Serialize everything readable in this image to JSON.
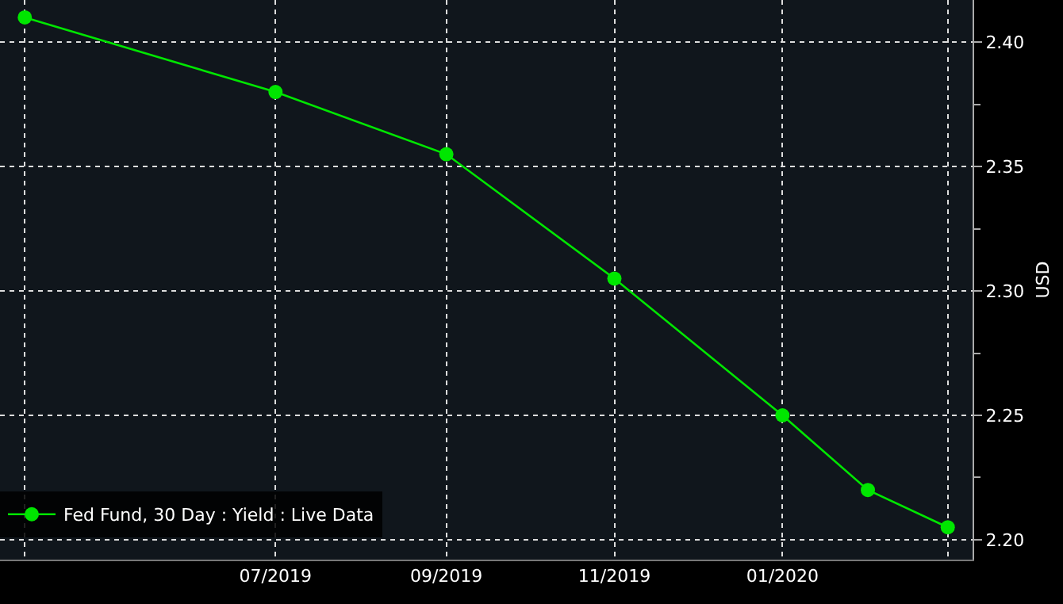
{
  "chart_data": {
    "type": "line",
    "ylabel": "USD",
    "x": [
      "2019-04",
      "2019-07",
      "2019-09",
      "2019-11",
      "2020-01",
      "2020-02",
      "2020-03"
    ],
    "series": [
      {
        "name": "Fed Fund, 30 Day : Yield : Live Data",
        "color": "#00e600",
        "values": [
          2.41,
          2.38,
          2.355,
          2.305,
          2.25,
          2.22,
          2.205
        ]
      }
    ],
    "xlim": [
      "2019-03-23",
      "2020-03-10"
    ],
    "xticks": [
      {
        "value": "2019-04",
        "label": null
      },
      {
        "value": "2019-07",
        "label": "07/2019"
      },
      {
        "value": "2019-09",
        "label": "09/2019"
      },
      {
        "value": "2019-11",
        "label": "11/2019"
      },
      {
        "value": "2020-01",
        "label": "01/2020"
      },
      {
        "value": "2020-03",
        "label": null
      }
    ],
    "ylim": [
      2.192,
      2.417
    ],
    "yticks": [
      {
        "value": 2.2,
        "label": "2.20"
      },
      {
        "value": 2.225,
        "label": null
      },
      2.25,
      {
        "value": 2.275,
        "label": null
      },
      {
        "value": 2.3,
        "label": "2.30"
      },
      {
        "value": 2.325,
        "label": null
      },
      2.35,
      {
        "value": 2.375,
        "label": null
      },
      {
        "value": 2.4,
        "label": "2.40"
      }
    ],
    "grid": true,
    "legend": "bottom left",
    "marker": "circle",
    "line_style": "solid"
  }
}
